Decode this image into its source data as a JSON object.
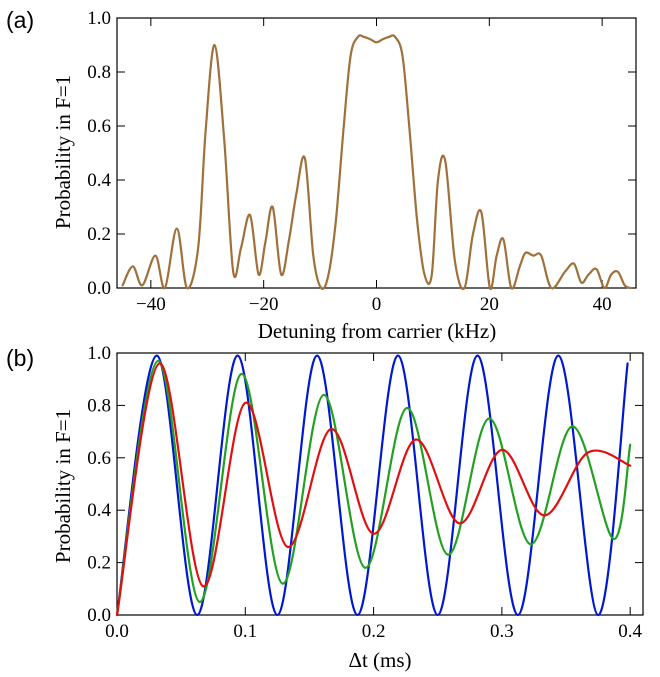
{
  "chart_data": [
    {
      "panel_label": "(a)",
      "type": "line",
      "xlabel": "Detuning from carrier (kHz)",
      "ylabel": "Probability in F=1",
      "xlim": [
        -46,
        46
      ],
      "ylim": [
        0,
        1.0
      ],
      "xticks": [
        -40,
        -20,
        0,
        20,
        40
      ],
      "xtick_labels": [
        "−40",
        "−20",
        "0",
        "20",
        "40"
      ],
      "yticks": [
        0.0,
        0.2,
        0.4,
        0.6,
        0.8,
        1.0
      ],
      "ytick_labels": [
        "0.0",
        "0.2",
        "0.4",
        "0.6",
        "0.8",
        "1.0"
      ],
      "grid": false,
      "series": [
        {
          "color": "#a0703a",
          "x": [
            -45,
            -43.2,
            -41.5,
            -39.2,
            -37.5,
            -35.4,
            -33.6,
            -31.6,
            -30.3,
            -28.7,
            -27.0,
            -25.4,
            -24.0,
            -22.4,
            -20.9,
            -19.7,
            -18.4,
            -16.9,
            -15.5,
            -14.2,
            -12.7,
            -11.2,
            -9.8,
            -8.5,
            -7.2,
            -5.8,
            -4.6,
            -3.3,
            -2.2,
            -1.0,
            0,
            1.0,
            2.2,
            3.3,
            4.6,
            5.8,
            7.2,
            8.5,
            9.8,
            10.9,
            12.2,
            13.9,
            15.6,
            17.1,
            18.6,
            20.1,
            21.3,
            22.5,
            23.9,
            25.4,
            26.4,
            27.8,
            29.2,
            31.0,
            33.4,
            35.0,
            36.3,
            37.6,
            39.0,
            40.4,
            41.6,
            42.8,
            44.0,
            45
          ],
          "y": [
            0.01,
            0.08,
            0.01,
            0.12,
            0.0,
            0.22,
            0.0,
            0.15,
            0.58,
            0.9,
            0.55,
            0.06,
            0.15,
            0.27,
            0.05,
            0.17,
            0.3,
            0.05,
            0.18,
            0.35,
            0.48,
            0.12,
            0.0,
            0.05,
            0.25,
            0.6,
            0.86,
            0.93,
            0.93,
            0.92,
            0.91,
            0.92,
            0.93,
            0.93,
            0.86,
            0.6,
            0.25,
            0.05,
            0.05,
            0.4,
            0.47,
            0.1,
            0.0,
            0.2,
            0.28,
            0.0,
            0.12,
            0.18,
            0.0,
            0.08,
            0.13,
            0.12,
            0.12,
            0.0,
            0.06,
            0.09,
            0.02,
            0.05,
            0.07,
            0.0,
            0.05,
            0.06,
            0.01,
            0.0
          ]
        }
      ]
    },
    {
      "panel_label": "(b)",
      "type": "line",
      "xlabel": "Δt (ms)",
      "ylabel": "Probability in F=1",
      "xlim": [
        0,
        0.41
      ],
      "ylim": [
        0,
        1.0
      ],
      "xticks": [
        0.0,
        0.1,
        0.2,
        0.3,
        0.4
      ],
      "xtick_labels": [
        "0.0",
        "0.1",
        "0.2",
        "0.3",
        "0.4"
      ],
      "yticks": [
        0.0,
        0.2,
        0.4,
        0.6,
        0.8,
        1.0
      ],
      "ytick_labels": [
        "0.0",
        "0.2",
        "0.4",
        "0.6",
        "0.8",
        "1.0"
      ],
      "grid": false,
      "series": [
        {
          "color": "#0018d0",
          "x": [
            0.0,
            0.031,
            0.0625,
            0.094,
            0.125,
            0.156,
            0.1875,
            0.219,
            0.25,
            0.281,
            0.3125,
            0.344,
            0.375,
            0.398
          ],
          "y": [
            0.0,
            0.99,
            0.0,
            0.99,
            0.0,
            0.99,
            0.0,
            0.99,
            0.0,
            0.99,
            0.0,
            0.99,
            0.0,
            0.96
          ]
        },
        {
          "color": "#22a022",
          "x": [
            0.0,
            0.032,
            0.0645,
            0.097,
            0.129,
            0.161,
            0.1935,
            0.226,
            0.258,
            0.29,
            0.3225,
            0.355,
            0.387,
            0.4
          ],
          "y": [
            0.0,
            0.97,
            0.05,
            0.92,
            0.12,
            0.84,
            0.18,
            0.79,
            0.23,
            0.75,
            0.27,
            0.72,
            0.29,
            0.65
          ]
        },
        {
          "color": "#e01010",
          "x": [
            0.0,
            0.033,
            0.067,
            0.1,
            0.133,
            0.167,
            0.2,
            0.233,
            0.267,
            0.3,
            0.333,
            0.367,
            0.4
          ],
          "y": [
            0.0,
            0.96,
            0.11,
            0.81,
            0.26,
            0.71,
            0.31,
            0.67,
            0.35,
            0.63,
            0.38,
            0.62,
            0.57
          ]
        }
      ]
    }
  ]
}
